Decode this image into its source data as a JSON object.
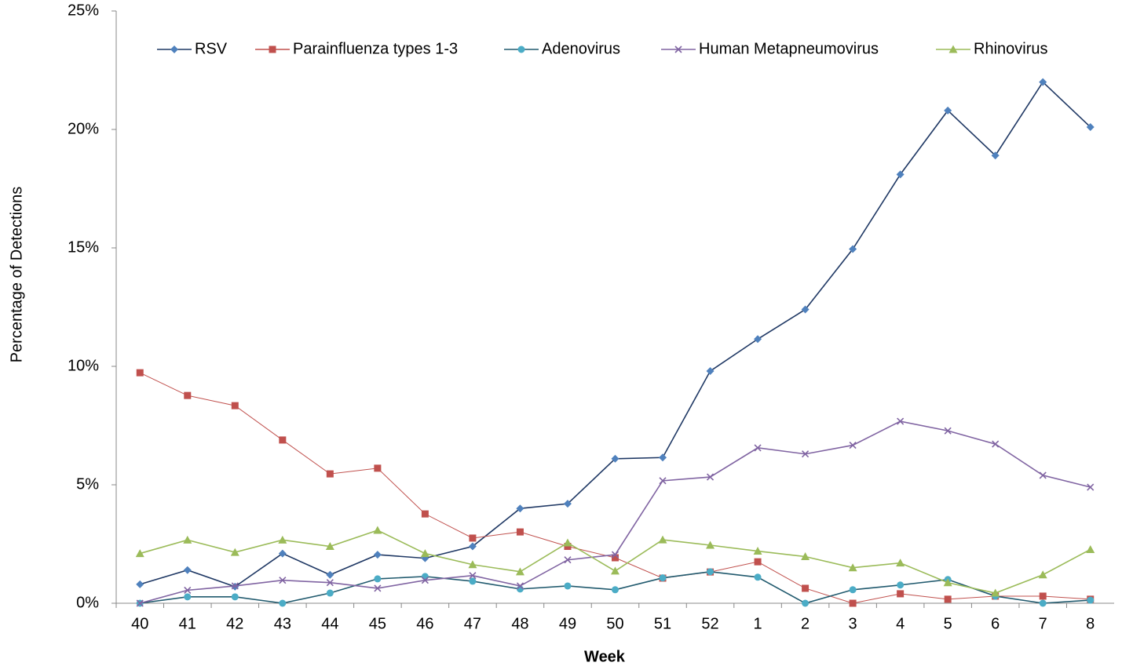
{
  "chart_data": {
    "type": "line",
    "x_label": "Week",
    "y_label": "Percentage of Detections",
    "categories": [
      "40",
      "41",
      "42",
      "43",
      "44",
      "45",
      "46",
      "47",
      "48",
      "49",
      "50",
      "51",
      "52",
      "1",
      "2",
      "3",
      "4",
      "5",
      "6",
      "7",
      "8"
    ],
    "series": [
      {
        "name": "RSV",
        "color": "#1f3864",
        "marker_color": "#4f81bd",
        "marker": "diamond",
        "values": [
          0.8,
          1.4,
          0.7,
          2.1,
          1.2,
          2.05,
          1.9,
          2.4,
          4.0,
          4.2,
          6.1,
          6.15,
          9.8,
          11.15,
          12.4,
          14.95,
          18.1,
          20.8,
          18.9,
          22.0,
          20.1
        ]
      },
      {
        "name": "Parainfluenza types 1-3",
        "color": "#c0504d",
        "marker_color": "#c0504d",
        "marker": "square",
        "values": [
          9.73,
          8.77,
          8.34,
          6.89,
          5.46,
          5.7,
          3.77,
          2.75,
          3.01,
          2.4,
          1.92,
          1.06,
          1.32,
          1.75,
          0.63,
          0,
          0.4,
          0.17,
          0.3,
          0.3,
          0.17
        ]
      },
      {
        "name": "Adenovirus",
        "color": "#215a6e",
        "marker_color": "#4bacc6",
        "marker": "circle",
        "values": [
          0,
          0.27,
          0.27,
          0,
          0.43,
          1.03,
          1.13,
          0.93,
          0.6,
          0.73,
          0.57,
          1.07,
          1.33,
          1.1,
          0,
          0.57,
          0.77,
          1.0,
          0.3,
          0,
          0.13
        ]
      },
      {
        "name": "Human Metapneumovirus",
        "color": "#8064a2",
        "marker_color": "#8064a2",
        "marker": "x",
        "values": [
          0,
          0.55,
          0.73,
          0.97,
          0.87,
          0.63,
          0.97,
          1.17,
          0.73,
          1.83,
          2.05,
          5.17,
          5.33,
          6.56,
          6.3,
          6.67,
          7.68,
          7.28,
          6.72,
          5.4,
          4.9
        ]
      },
      {
        "name": "Rhinovirus",
        "color": "#9bbb59",
        "marker_color": "#9bbb59",
        "marker": "triangle",
        "values": [
          2.1,
          2.67,
          2.15,
          2.67,
          2.4,
          3.08,
          2.1,
          1.63,
          1.33,
          2.55,
          1.36,
          2.68,
          2.45,
          2.2,
          1.97,
          1.5,
          1.7,
          0.87,
          0.43,
          1.2,
          2.27
        ]
      }
    ],
    "ylim": [
      0,
      25
    ],
    "yticks": [
      {
        "value": 0,
        "label": "0%"
      },
      {
        "value": 5,
        "label": "5%"
      },
      {
        "value": 10,
        "label": "10%"
      },
      {
        "value": 15,
        "label": "15%"
      },
      {
        "value": 20,
        "label": "20%"
      },
      {
        "value": 25,
        "label": "25%"
      }
    ],
    "grid": false,
    "legend": "top"
  }
}
